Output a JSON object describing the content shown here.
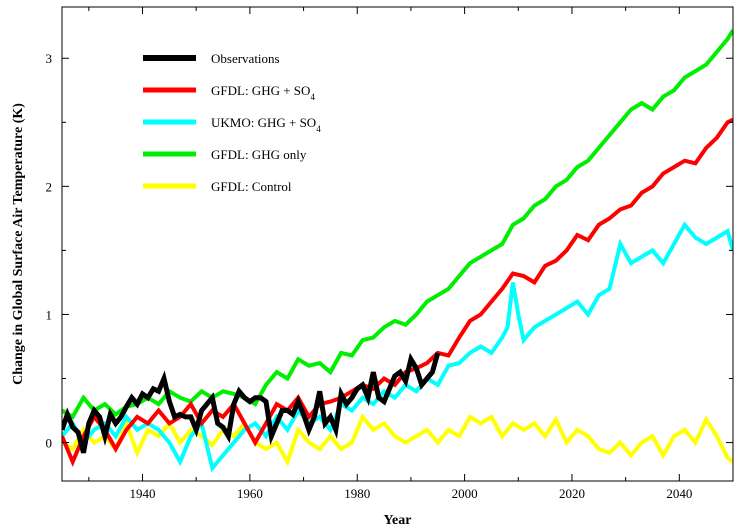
{
  "chart_data": {
    "type": "line",
    "title": "",
    "xlabel": "Year",
    "ylabel": "Change in Global Surface Air Temperature (K)",
    "xlim": [
      1925,
      2050
    ],
    "ylim": [
      -0.3,
      3.4
    ],
    "xticks": [
      1940,
      1960,
      1980,
      2000,
      2020,
      2040
    ],
    "yticks": [
      0,
      1,
      2,
      3
    ],
    "grid": false,
    "legend_position": "top-left",
    "series": [
      {
        "name": "Observations",
        "color": "#000000",
        "x": [
          1925,
          1926,
          1927,
          1928,
          1929,
          1930,
          1931,
          1932,
          1933,
          1934,
          1935,
          1936,
          1937,
          1938,
          1939,
          1940,
          1941,
          1942,
          1943,
          1944,
          1945,
          1946,
          1947,
          1948,
          1949,
          1950,
          1951,
          1952,
          1953,
          1954,
          1955,
          1956,
          1957,
          1958,
          1959,
          1960,
          1961,
          1962,
          1963,
          1964,
          1965,
          1966,
          1967,
          1968,
          1969,
          1970,
          1971,
          1972,
          1973,
          1974,
          1975,
          1976,
          1977,
          1978,
          1979,
          1980,
          1981,
          1982,
          1983,
          1984,
          1985,
          1986,
          1987,
          1988,
          1989,
          1990,
          1991,
          1992,
          1993,
          1994,
          1995
        ],
        "y": [
          0.1,
          0.22,
          0.12,
          0.08,
          -0.08,
          0.15,
          0.25,
          0.2,
          0.05,
          0.22,
          0.15,
          0.2,
          0.28,
          0.35,
          0.3,
          0.38,
          0.35,
          0.42,
          0.4,
          0.5,
          0.32,
          0.2,
          0.22,
          0.2,
          0.2,
          0.1,
          0.25,
          0.3,
          0.35,
          0.15,
          0.12,
          0.05,
          0.3,
          0.4,
          0.35,
          0.32,
          0.35,
          0.35,
          0.32,
          0.05,
          0.15,
          0.25,
          0.25,
          0.22,
          0.32,
          0.22,
          0.1,
          0.2,
          0.4,
          0.15,
          0.2,
          0.1,
          0.38,
          0.3,
          0.35,
          0.42,
          0.45,
          0.35,
          0.55,
          0.35,
          0.32,
          0.42,
          0.52,
          0.55,
          0.48,
          0.65,
          0.58,
          0.45,
          0.5,
          0.55,
          0.7
        ]
      },
      {
        "name": "GFDL: GHG + SO4",
        "color": "#ff0000",
        "x": [
          1925,
          1927,
          1929,
          1931,
          1933,
          1935,
          1937,
          1939,
          1941,
          1943,
          1945,
          1947,
          1949,
          1951,
          1953,
          1955,
          1957,
          1959,
          1961,
          1963,
          1965,
          1967,
          1969,
          1971,
          1973,
          1975,
          1977,
          1979,
          1981,
          1983,
          1985,
          1987,
          1989,
          1991,
          1993,
          1995,
          1997,
          1999,
          2001,
          2003,
          2005,
          2007,
          2009,
          2011,
          2013,
          2015,
          2017,
          2019,
          2021,
          2023,
          2025,
          2027,
          2029,
          2031,
          2033,
          2035,
          2037,
          2039,
          2041,
          2043,
          2045,
          2047,
          2049,
          2050
        ],
        "y": [
          0.05,
          -0.15,
          0.05,
          0.2,
          0.1,
          -0.05,
          0.1,
          0.2,
          0.15,
          0.25,
          0.15,
          0.2,
          0.3,
          0.15,
          0.25,
          0.2,
          0.3,
          0.15,
          0.0,
          0.15,
          0.3,
          0.25,
          0.35,
          0.2,
          0.3,
          0.32,
          0.35,
          0.4,
          0.45,
          0.42,
          0.5,
          0.45,
          0.55,
          0.58,
          0.62,
          0.7,
          0.68,
          0.82,
          0.95,
          1.0,
          1.1,
          1.2,
          1.32,
          1.3,
          1.25,
          1.38,
          1.42,
          1.5,
          1.62,
          1.58,
          1.7,
          1.75,
          1.82,
          1.85,
          1.95,
          2.0,
          2.1,
          2.15,
          2.2,
          2.18,
          2.3,
          2.38,
          2.5,
          2.52
        ]
      },
      {
        "name": "UKMO: GHG + SO4",
        "color": "#00ffff",
        "x": [
          1925,
          1927,
          1929,
          1931,
          1933,
          1935,
          1937,
          1939,
          1941,
          1943,
          1945,
          1947,
          1949,
          1951,
          1953,
          1955,
          1957,
          1959,
          1961,
          1963,
          1965,
          1967,
          1969,
          1971,
          1973,
          1975,
          1977,
          1979,
          1981,
          1983,
          1985,
          1987,
          1989,
          1991,
          1993,
          1995,
          1997,
          1999,
          2001,
          2003,
          2005,
          2007,
          2008,
          2009,
          2010,
          2011,
          2013,
          2015,
          2017,
          2019,
          2021,
          2023,
          2025,
          2027,
          2029,
          2031,
          2033,
          2035,
          2037,
          2039,
          2041,
          2043,
          2045,
          2047,
          2049,
          2050
        ],
        "y": [
          0.05,
          0.15,
          0.0,
          0.1,
          0.15,
          0.05,
          0.2,
          0.1,
          0.15,
          0.1,
          0.0,
          -0.15,
          0.05,
          0.15,
          -0.2,
          -0.1,
          0.0,
          0.1,
          0.15,
          0.05,
          0.2,
          0.1,
          0.25,
          0.15,
          0.2,
          0.1,
          0.3,
          0.25,
          0.35,
          0.3,
          0.4,
          0.35,
          0.45,
          0.4,
          0.5,
          0.45,
          0.6,
          0.62,
          0.7,
          0.75,
          0.7,
          0.82,
          0.9,
          1.25,
          1.0,
          0.8,
          0.9,
          0.95,
          1.0,
          1.05,
          1.1,
          1.0,
          1.15,
          1.2,
          1.55,
          1.4,
          1.45,
          1.5,
          1.4,
          1.55,
          1.7,
          1.6,
          1.55,
          1.6,
          1.65,
          1.5
        ]
      },
      {
        "name": "GFDL: GHG only",
        "color": "#00ee00",
        "x": [
          1925,
          1927,
          1929,
          1931,
          1933,
          1935,
          1937,
          1939,
          1941,
          1943,
          1945,
          1947,
          1949,
          1951,
          1953,
          1955,
          1957,
          1959,
          1961,
          1963,
          1965,
          1967,
          1969,
          1971,
          1973,
          1975,
          1977,
          1979,
          1981,
          1983,
          1985,
          1987,
          1989,
          1991,
          1993,
          1995,
          1997,
          1999,
          2001,
          2003,
          2005,
          2007,
          2009,
          2011,
          2013,
          2015,
          2017,
          2019,
          2021,
          2023,
          2025,
          2027,
          2029,
          2031,
          2033,
          2035,
          2037,
          2039,
          2041,
          2043,
          2045,
          2047,
          2049,
          2050
        ],
        "y": [
          0.25,
          0.2,
          0.35,
          0.25,
          0.3,
          0.22,
          0.28,
          0.3,
          0.35,
          0.3,
          0.4,
          0.35,
          0.32,
          0.4,
          0.35,
          0.4,
          0.38,
          0.35,
          0.3,
          0.45,
          0.55,
          0.5,
          0.65,
          0.6,
          0.62,
          0.55,
          0.7,
          0.68,
          0.8,
          0.82,
          0.9,
          0.95,
          0.92,
          1.0,
          1.1,
          1.15,
          1.2,
          1.3,
          1.4,
          1.45,
          1.5,
          1.55,
          1.7,
          1.75,
          1.85,
          1.9,
          2.0,
          2.05,
          2.15,
          2.2,
          2.3,
          2.4,
          2.5,
          2.6,
          2.65,
          2.6,
          2.7,
          2.75,
          2.85,
          2.9,
          2.95,
          3.05,
          3.15,
          3.22
        ]
      },
      {
        "name": "GFDL: Control",
        "color": "#ffff00",
        "x": [
          1925,
          1927,
          1929,
          1931,
          1933,
          1935,
          1937,
          1939,
          1941,
          1943,
          1945,
          1947,
          1949,
          1951,
          1953,
          1955,
          1957,
          1959,
          1961,
          1963,
          1965,
          1967,
          1969,
          1971,
          1973,
          1975,
          1977,
          1979,
          1981,
          1983,
          1985,
          1987,
          1989,
          1991,
          1993,
          1995,
          1997,
          1999,
          2001,
          2003,
          2005,
          2007,
          2009,
          2011,
          2013,
          2015,
          2017,
          2019,
          2021,
          2023,
          2025,
          2027,
          2029,
          2031,
          2033,
          2035,
          2037,
          2039,
          2041,
          2043,
          2045,
          2047,
          2049,
          2050
        ],
        "y": [
          0.0,
          -0.05,
          0.1,
          0.0,
          0.05,
          -0.05,
          0.15,
          -0.08,
          0.1,
          0.05,
          0.15,
          0.0,
          0.1,
          0.05,
          -0.02,
          0.1,
          0.05,
          0.15,
          0.0,
          -0.05,
          0.0,
          -0.15,
          0.1,
          0.0,
          -0.05,
          0.05,
          -0.05,
          0.0,
          0.2,
          0.1,
          0.15,
          0.05,
          0.0,
          0.05,
          0.1,
          0.0,
          0.1,
          0.05,
          0.2,
          0.15,
          0.2,
          0.05,
          0.15,
          0.1,
          0.15,
          0.05,
          0.18,
          0.0,
          0.1,
          0.05,
          -0.05,
          -0.08,
          0.0,
          -0.1,
          0.0,
          0.05,
          -0.1,
          0.05,
          0.1,
          0.0,
          0.18,
          0.05,
          -0.12,
          -0.15
        ]
      }
    ]
  },
  "legend": {
    "items": [
      {
        "series": 0,
        "text": "Observations",
        "sub": ""
      },
      {
        "series": 1,
        "text": "GFDL: GHG + SO",
        "sub": "4"
      },
      {
        "series": 2,
        "text": "UKMO: GHG + SO",
        "sub": "4"
      },
      {
        "series": 3,
        "text": "GFDL: GHG only",
        "sub": ""
      },
      {
        "series": 4,
        "text": "GFDL: Control",
        "sub": ""
      }
    ]
  }
}
